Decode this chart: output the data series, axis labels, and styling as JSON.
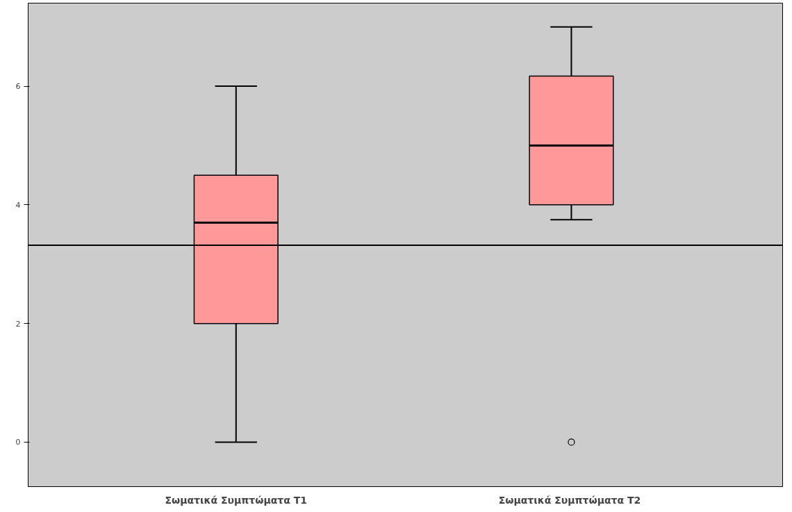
{
  "chart_data": {
    "type": "box",
    "categories": [
      "Σωματικά Συμπτώματα T1",
      "Σωματικά Συμπτώματα  T2"
    ],
    "boxes": [
      {
        "low": 0,
        "q1": 2,
        "median": 3.7,
        "q3": 4.5,
        "high": 6
      },
      {
        "low": 3.75,
        "q1": 4,
        "median": 5,
        "q3": 6.17,
        "high": 7,
        "outliers": [
          0
        ]
      }
    ],
    "color": "#ff9999",
    "ylim": [
      -0.75,
      7.4
    ],
    "yticks": [
      0,
      2,
      4,
      6
    ],
    "grid": false,
    "ref_lines": [
      {
        "axis": "y",
        "value": 3.32,
        "color": "#000000"
      }
    ]
  }
}
